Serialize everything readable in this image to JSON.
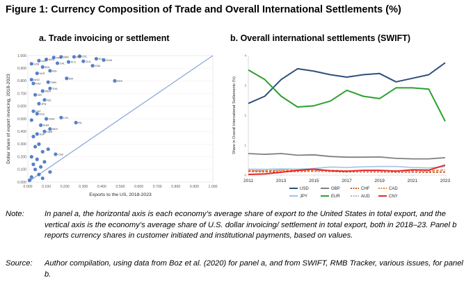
{
  "figure_title": "Figure 1: Currency Composition of Trade and Overall International Settlements (%)",
  "note_label": "Note:",
  "note_text": "In panel a, the horizontal axis is each economy’s average share of export to the United States in total export, and the vertical axis is the economy’s average share of U.S. dollar invoicing/ settlement in total export, both in 2018–23. Panel b reports currency shares in customer initiated and institutional payments, based on values.",
  "source_label": "Source:",
  "source_text": "Author compilation, using data from Boz et al. (2020) for panel a, and from SWIFT, RMB Tracker, various issues, for panel b.",
  "colors": {
    "scatter": "#4472c4",
    "diagonal": "#8faadc",
    "USD": "#2e4f7a",
    "EUR": "#2ca02c",
    "GBP": "#7f7f7f",
    "JPY": "#9dc3e6",
    "CHF": "#c55a11",
    "AUD": "#b4a7d6",
    "CAD": "#ed7d31",
    "CNY": "#e8262b"
  },
  "chart_data": [
    {
      "type": "scatter",
      "title": "a. Trade invoicing or settlement",
      "xlabel": "Exports to the US, 2018-2023",
      "ylabel": "Dollar share of export invoicing, 2018-2023",
      "xlim": [
        0,
        1
      ],
      "ylim": [
        0,
        1
      ],
      "xticks": [
        "0.000",
        "0.100",
        "0.200",
        "0.300",
        "0.400",
        "0.500",
        "0.600",
        "0.700",
        "0.800",
        "0.900",
        "1.000"
      ],
      "yticks": [
        "0.000",
        "0.100",
        "0.200",
        "0.300",
        "0.400",
        "0.500",
        "0.600",
        "0.700",
        "0.800",
        "0.900",
        "1.000"
      ],
      "reference_line": {
        "from": [
          0,
          0
        ],
        "to": [
          1,
          1
        ]
      },
      "points": [
        {
          "x": 0.28,
          "y": 0.995,
          "label": "COL"
        },
        {
          "x": 0.25,
          "y": 0.99,
          "label": "PRY"
        },
        {
          "x": 0.18,
          "y": 0.99,
          "label": "BRA"
        },
        {
          "x": 0.14,
          "y": 0.985,
          "label": "PER"
        },
        {
          "x": 0.37,
          "y": 0.975,
          "label": "ECU"
        },
        {
          "x": 0.41,
          "y": 0.965,
          "label": "DOM"
        },
        {
          "x": 0.3,
          "y": 0.955,
          "label": "GUL"
        },
        {
          "x": 0.22,
          "y": 0.95,
          "label": "PLS"
        },
        {
          "x": 0.1,
          "y": 0.97,
          "label": "ARG"
        },
        {
          "x": 0.06,
          "y": 0.96,
          "label": "AUS"
        },
        {
          "x": 0.16,
          "y": 0.94,
          "label": "CHL"
        },
        {
          "x": 0.02,
          "y": 0.935,
          "label": "UZB"
        },
        {
          "x": 0.35,
          "y": 0.92,
          "label": "KNA"
        },
        {
          "x": 0.08,
          "y": 0.91,
          "label": "BOL"
        },
        {
          "x": 0.12,
          "y": 0.88,
          "label": "IND"
        },
        {
          "x": 0.05,
          "y": 0.86,
          "label": "UKR"
        },
        {
          "x": 0.21,
          "y": 0.82,
          "label": "BIH"
        },
        {
          "x": 0.02,
          "y": 0.81,
          "label": "AGO"
        },
        {
          "x": 0.47,
          "y": 0.8,
          "label": "BHS"
        },
        {
          "x": 0.11,
          "y": 0.79,
          "label": "TWN"
        },
        {
          "x": 0.03,
          "y": 0.78,
          "label": "KAZ"
        },
        {
          "x": 0.12,
          "y": 0.74,
          "label": "THA"
        },
        {
          "x": 0.08,
          "y": 0.72,
          "label": "MDA"
        },
        {
          "x": 0.04,
          "y": 0.69,
          "label": "ISR"
        },
        {
          "x": 0.09,
          "y": 0.65,
          "label": "NZL"
        },
        {
          "x": 0.06,
          "y": 0.62,
          "label": "JPN"
        },
        {
          "x": 0.03,
          "y": 0.56,
          "label": "QAT"
        },
        {
          "x": 0.05,
          "y": 0.54,
          "label": "KGZ"
        },
        {
          "x": 0.18,
          "y": 0.51,
          "label": "LTN"
        },
        {
          "x": 0.1,
          "y": 0.5,
          "label": "VNM"
        },
        {
          "x": 0.02,
          "y": 0.49,
          "label": ""
        },
        {
          "x": 0.26,
          "y": 0.47,
          "label": "IRL"
        },
        {
          "x": 0.07,
          "y": 0.45,
          "label": "KHM"
        },
        {
          "x": 0.12,
          "y": 0.42,
          "label": "MEX"
        },
        {
          "x": 0.09,
          "y": 0.4,
          "label": "GBR"
        },
        {
          "x": 0.05,
          "y": 0.38,
          "label": "SGP"
        },
        {
          "x": 0.03,
          "y": 0.36,
          "label": ""
        },
        {
          "x": 0.06,
          "y": 0.3,
          "label": ""
        },
        {
          "x": 0.04,
          "y": 0.28,
          "label": ""
        },
        {
          "x": 0.11,
          "y": 0.26,
          "label": ""
        },
        {
          "x": 0.08,
          "y": 0.24,
          "label": ""
        },
        {
          "x": 0.15,
          "y": 0.22,
          "label": "CHE"
        },
        {
          "x": 0.02,
          "y": 0.2,
          "label": ""
        },
        {
          "x": 0.05,
          "y": 0.18,
          "label": ""
        },
        {
          "x": 0.09,
          "y": 0.16,
          "label": ""
        },
        {
          "x": 0.03,
          "y": 0.14,
          "label": ""
        },
        {
          "x": 0.07,
          "y": 0.12,
          "label": ""
        },
        {
          "x": 0.04,
          "y": 0.1,
          "label": ""
        },
        {
          "x": 0.12,
          "y": 0.08,
          "label": ""
        },
        {
          "x": 0.06,
          "y": 0.06,
          "label": ""
        },
        {
          "x": 0.02,
          "y": 0.04,
          "label": ""
        },
        {
          "x": 0.08,
          "y": 0.03,
          "label": ""
        },
        {
          "x": 0.01,
          "y": 0.015,
          "label": ""
        }
      ]
    },
    {
      "type": "line",
      "title": "b. Overall international settlements (SWIFT)",
      "ylabel": "Share in Overall International Settlements (%)",
      "x": [
        2011,
        2012,
        2013,
        2014,
        2015,
        2016,
        2017,
        2018,
        2019,
        2020,
        2021,
        2022,
        2023
      ],
      "xticks": [
        2011,
        2013,
        2015,
        2017,
        2019,
        2021,
        2023
      ],
      "yticks_labelled": [
        1,
        2,
        3
      ],
      "ylim": [
        0,
        50
      ],
      "series": [
        {
          "name": "USD",
          "values": [
            30,
            33,
            40,
            44.5,
            43.5,
            42,
            41,
            42,
            42.5,
            39,
            40.5,
            42,
            47
          ]
        },
        {
          "name": "EUR",
          "values": [
            44,
            40,
            33,
            28.5,
            29,
            31,
            35.5,
            33,
            32,
            36.5,
            36.5,
            36,
            22.5
          ]
        },
        {
          "name": "GBP",
          "values": [
            9,
            8.7,
            9,
            8.3,
            8.5,
            7.8,
            7.5,
            7.5,
            7.6,
            7,
            6.8,
            6.8,
            7.3
          ]
        },
        {
          "name": "JPY",
          "values": [
            2.5,
            2.4,
            2.6,
            2.5,
            2.8,
            3.4,
            3.2,
            3.5,
            3.6,
            3.6,
            3.2,
            3.0,
            3.6
          ]
        },
        {
          "name": "CHF",
          "values": [
            1.5,
            1.4,
            1.4,
            1.5,
            1.6,
            1.5,
            1.3,
            1.3,
            1.3,
            1.2,
            1.2,
            1.1,
            1.2
          ]
        },
        {
          "name": "AUD",
          "values": [
            2.0,
            1.9,
            2.1,
            1.9,
            1.8,
            1.7,
            1.5,
            1.5,
            1.6,
            1.5,
            1.4,
            1.5,
            1.5
          ]
        },
        {
          "name": "CAD",
          "values": [
            1.8,
            1.8,
            2.0,
            2.0,
            1.9,
            2.0,
            1.8,
            1.9,
            1.9,
            1.8,
            1.7,
            1.8,
            2.2
          ]
        },
        {
          "name": "CNY",
          "values": [
            0.3,
            0.5,
            1.2,
            2.0,
            2.5,
            1.8,
            1.6,
            2.0,
            2.0,
            1.7,
            2.2,
            2.1,
            4.2
          ]
        }
      ],
      "legend": {
        "placement": "bottom",
        "entries": [
          "USD",
          "GBP",
          "CHF",
          "CAD",
          "JPY",
          "EUR",
          "AUD",
          "CNY"
        ]
      }
    }
  ]
}
